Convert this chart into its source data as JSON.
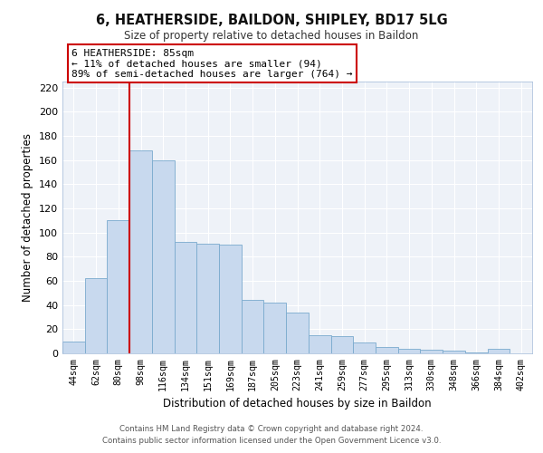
{
  "title": "6, HEATHERSIDE, BAILDON, SHIPLEY, BD17 5LG",
  "subtitle": "Size of property relative to detached houses in Baildon",
  "xlabel": "Distribution of detached houses by size in Baildon",
  "ylabel": "Number of detached properties",
  "bar_labels": [
    "44sqm",
    "62sqm",
    "80sqm",
    "98sqm",
    "116sqm",
    "134sqm",
    "151sqm",
    "169sqm",
    "187sqm",
    "205sqm",
    "223sqm",
    "241sqm",
    "259sqm",
    "277sqm",
    "295sqm",
    "313sqm",
    "330sqm",
    "348sqm",
    "366sqm",
    "384sqm",
    "402sqm"
  ],
  "bar_values": [
    10,
    62,
    110,
    168,
    160,
    92,
    91,
    90,
    44,
    42,
    34,
    15,
    14,
    9,
    5,
    4,
    3,
    2,
    1,
    4,
    0
  ],
  "bar_color": "#c8d9ee",
  "bar_edge_color": "#7aaace",
  "vline_x": 2,
  "vline_color": "#cc0000",
  "annotation_line1": "6 HEATHERSIDE: 85sqm",
  "annotation_line2": "← 11% of detached houses are smaller (94)",
  "annotation_line3": "89% of semi-detached houses are larger (764) →",
  "ylim": [
    0,
    225
  ],
  "yticks": [
    0,
    20,
    40,
    60,
    80,
    100,
    120,
    140,
    160,
    180,
    200,
    220
  ],
  "footer1": "Contains HM Land Registry data © Crown copyright and database right 2024.",
  "footer2": "Contains public sector information licensed under the Open Government Licence v3.0.",
  "plot_bg_color": "#eef2f8",
  "grid_color": "#ffffff",
  "fig_bg_color": "#ffffff"
}
